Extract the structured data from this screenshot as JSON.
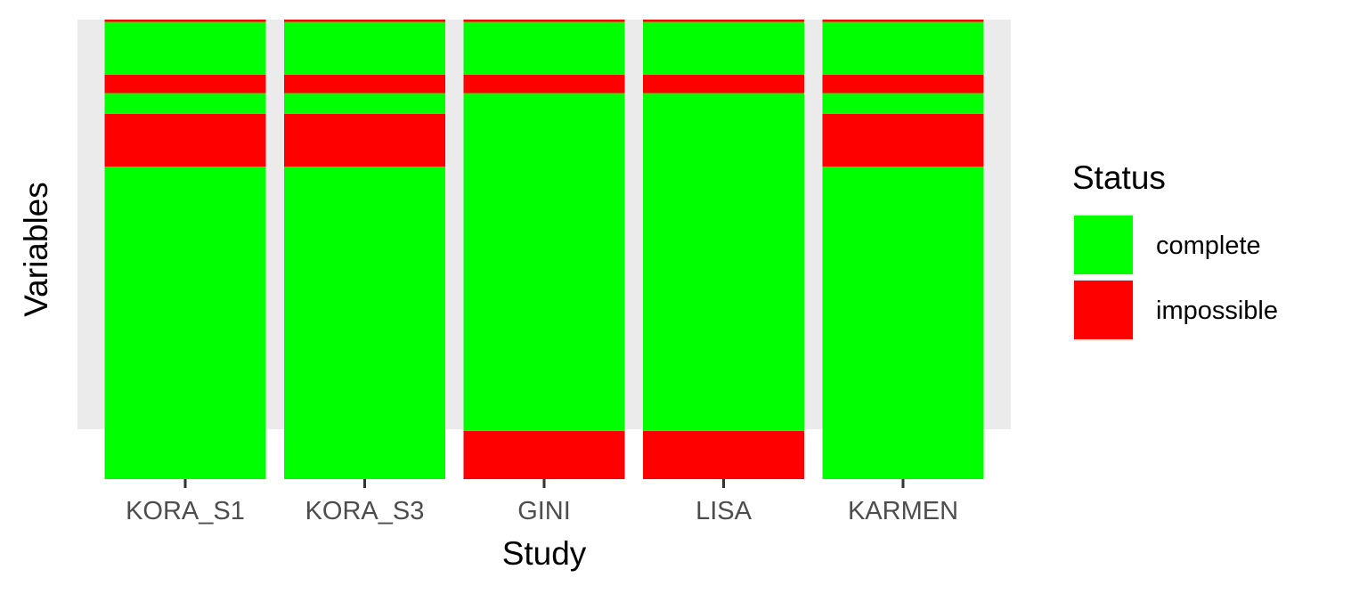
{
  "chart_data": {
    "type": "heatmap",
    "xlabel": "Study",
    "ylabel": "Variables",
    "categories": [
      "KORA_S1",
      "KORA_S3",
      "GINI",
      "LISA",
      "KARMEN"
    ],
    "legend": {
      "title": "Status",
      "position": "right",
      "entries": [
        {
          "label": "complete",
          "color": "#00ff00"
        },
        {
          "label": "impossible",
          "color": "#ff0000"
        }
      ]
    },
    "variable_count": 100,
    "columns": [
      {
        "study": "KORA_S1",
        "segments": [
          {
            "status": "complete",
            "from": 0,
            "to": 68
          },
          {
            "status": "impossible",
            "from": 68,
            "to": 79.5
          },
          {
            "status": "complete",
            "from": 79.5,
            "to": 84
          },
          {
            "status": "impossible",
            "from": 84,
            "to": 88
          },
          {
            "status": "complete",
            "from": 88,
            "to": 99.5
          },
          {
            "status": "impossible",
            "from": 99.5,
            "to": 100
          }
        ]
      },
      {
        "study": "KORA_S3",
        "segments": [
          {
            "status": "complete",
            "from": 0,
            "to": 68
          },
          {
            "status": "impossible",
            "from": 68,
            "to": 79.5
          },
          {
            "status": "complete",
            "from": 79.5,
            "to": 84
          },
          {
            "status": "impossible",
            "from": 84,
            "to": 88
          },
          {
            "status": "complete",
            "from": 88,
            "to": 99.5
          },
          {
            "status": "impossible",
            "from": 99.5,
            "to": 100
          }
        ]
      },
      {
        "study": "GINI",
        "segments": [
          {
            "status": "impossible",
            "from": 0,
            "to": 10.5
          },
          {
            "status": "complete",
            "from": 10.5,
            "to": 84
          },
          {
            "status": "impossible",
            "from": 84,
            "to": 88
          },
          {
            "status": "complete",
            "from": 88,
            "to": 99.5
          },
          {
            "status": "impossible",
            "from": 99.5,
            "to": 100
          }
        ]
      },
      {
        "study": "LISA",
        "segments": [
          {
            "status": "impossible",
            "from": 0,
            "to": 10.5
          },
          {
            "status": "complete",
            "from": 10.5,
            "to": 84
          },
          {
            "status": "impossible",
            "from": 84,
            "to": 88
          },
          {
            "status": "complete",
            "from": 88,
            "to": 99.5
          },
          {
            "status": "impossible",
            "from": 99.5,
            "to": 100
          }
        ]
      },
      {
        "study": "KARMEN",
        "segments": [
          {
            "status": "complete",
            "from": 0,
            "to": 68
          },
          {
            "status": "impossible",
            "from": 68,
            "to": 79.5
          },
          {
            "status": "complete",
            "from": 79.5,
            "to": 84
          },
          {
            "status": "impossible",
            "from": 84,
            "to": 88
          },
          {
            "status": "complete",
            "from": 88,
            "to": 99.5
          },
          {
            "status": "impossible",
            "from": 99.5,
            "to": 100
          }
        ]
      }
    ],
    "colors": {
      "complete": "#00ff00",
      "impossible": "#ff0000",
      "panel_background": "#ebebeb",
      "tick_label": "#4d4d4d"
    },
    "grid": false
  }
}
